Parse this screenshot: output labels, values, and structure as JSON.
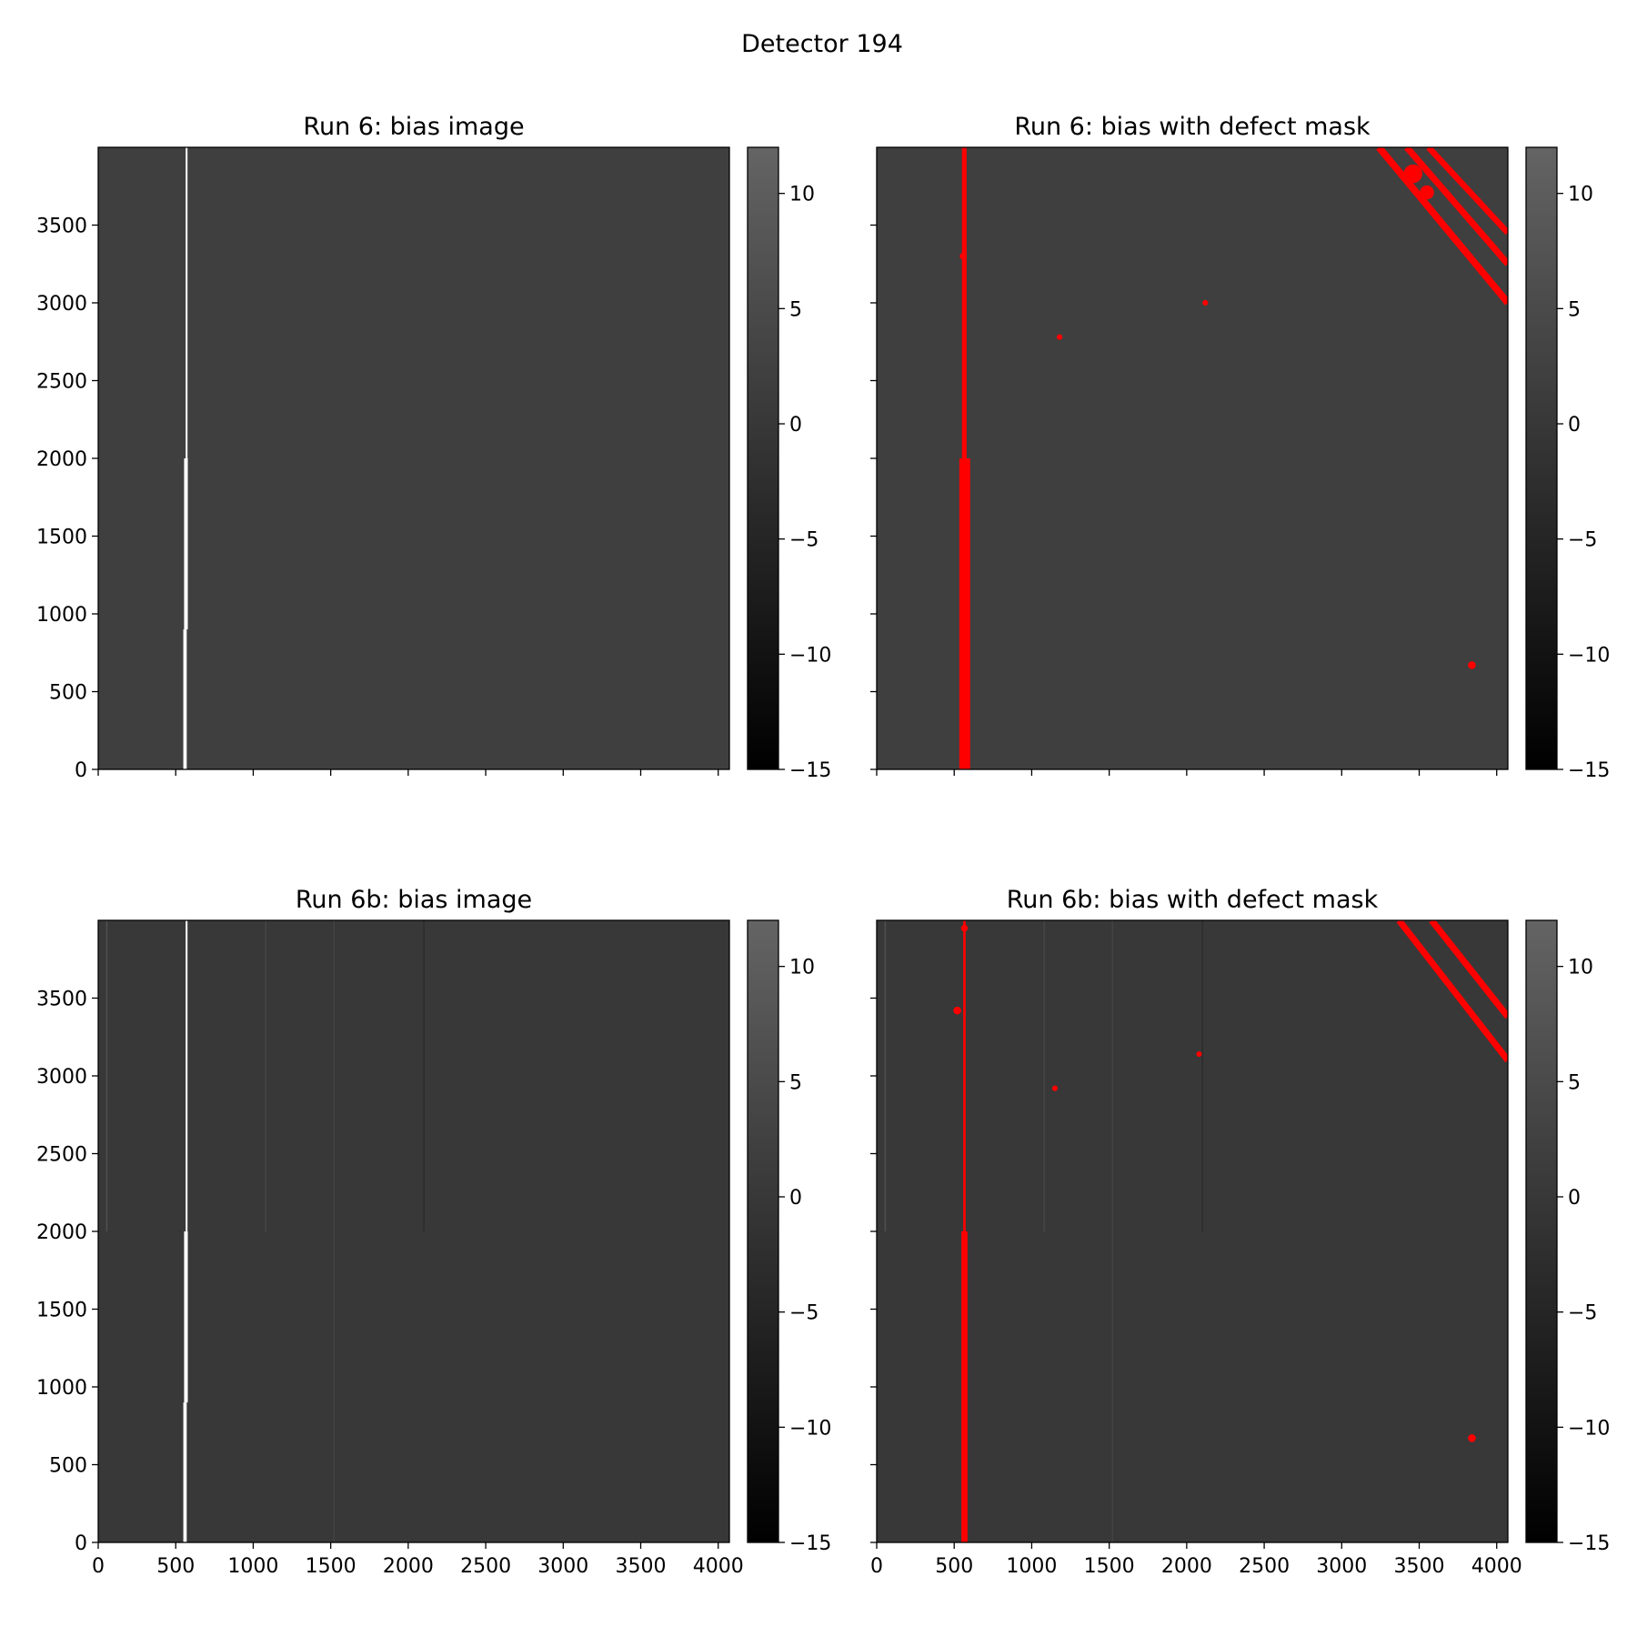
{
  "figure": {
    "suptitle": "Detector 194"
  },
  "chart_data": [
    {
      "type": "heatmap",
      "title": "Run 6: bias image",
      "xlim": [
        0,
        4072
      ],
      "ylim": [
        0,
        4000
      ],
      "x_ticks": [
        0,
        500,
        1000,
        1500,
        2000,
        2500,
        3000,
        3500,
        4000
      ],
      "x_tick_labels_shown": false,
      "y_ticks": [
        0,
        500,
        1000,
        1500,
        2000,
        2500,
        3000,
        3500
      ],
      "y_tick_labels_shown": true,
      "background_value": 2,
      "colormap": "gray",
      "colorbar": {
        "vmin": -15,
        "vmax": 12,
        "ticks": [
          -15,
          -10,
          -5,
          0,
          5,
          10
        ]
      },
      "bright_columns": [
        {
          "x": 560,
          "y_start": 0,
          "y_end": 900,
          "width": 22,
          "value": 12
        },
        {
          "x": 566,
          "y_start": 900,
          "y_end": 2000,
          "width": 24,
          "value": 12
        },
        {
          "x": 570,
          "y_start": 2000,
          "y_end": 4000,
          "width": 12,
          "value": 12
        }
      ],
      "faint_columns": [],
      "mask_color": "#ff0000",
      "mask": null
    },
    {
      "type": "heatmap",
      "title": "Run 6: bias with defect mask",
      "xlim": [
        0,
        4072
      ],
      "ylim": [
        0,
        4000
      ],
      "x_ticks": [
        0,
        500,
        1000,
        1500,
        2000,
        2500,
        3000,
        3500,
        4000
      ],
      "x_tick_labels_shown": false,
      "y_ticks": [
        0,
        500,
        1000,
        1500,
        2000,
        2500,
        3000,
        3500
      ],
      "y_tick_labels_shown": false,
      "background_value": 2,
      "colormap": "gray",
      "colorbar": {
        "vmin": -15,
        "vmax": 12,
        "ticks": [
          -15,
          -10,
          -5,
          0,
          5,
          10
        ]
      },
      "bright_columns": [],
      "faint_columns": [],
      "mask_color": "#ff0000",
      "mask": {
        "columns": [
          {
            "x": 568,
            "y_start": 0,
            "y_end": 2000,
            "width": 70
          },
          {
            "x": 565,
            "y_start": 2000,
            "y_end": 4000,
            "width": 30
          }
        ],
        "diagonals": [
          {
            "x1": 3240,
            "y1": 4000,
            "x2": 4072,
            "y2": 3000,
            "width": 30
          },
          {
            "x1": 3420,
            "y1": 4000,
            "x2": 4072,
            "y2": 3250,
            "width": 28
          },
          {
            "x1": 3560,
            "y1": 4000,
            "x2": 4072,
            "y2": 3450,
            "width": 26
          }
        ],
        "blobs": [
          {
            "x": 3460,
            "y": 3830,
            "r": 60
          },
          {
            "x": 3550,
            "y": 3710,
            "r": 45
          },
          {
            "x": 2120,
            "y": 3000,
            "r": 18
          },
          {
            "x": 1180,
            "y": 2780,
            "r": 18
          },
          {
            "x": 3840,
            "y": 670,
            "r": 25
          },
          {
            "x": 555,
            "y": 3300,
            "r": 20
          }
        ]
      }
    },
    {
      "type": "heatmap",
      "title": "Run 6b: bias image",
      "xlim": [
        0,
        4072
      ],
      "ylim": [
        0,
        4000
      ],
      "x_ticks": [
        0,
        500,
        1000,
        1500,
        2000,
        2500,
        3000,
        3500,
        4000
      ],
      "x_tick_labels_shown": true,
      "y_ticks": [
        0,
        500,
        1000,
        1500,
        2000,
        2500,
        3000,
        3500
      ],
      "y_tick_labels_shown": true,
      "background_value": 0,
      "colormap": "gray",
      "colorbar": {
        "vmin": -15,
        "vmax": 12,
        "ticks": [
          -15,
          -10,
          -5,
          0,
          5,
          10
        ]
      },
      "bright_columns": [
        {
          "x": 560,
          "y_start": 0,
          "y_end": 900,
          "width": 22,
          "value": 12
        },
        {
          "x": 566,
          "y_start": 900,
          "y_end": 2000,
          "width": 24,
          "value": 12
        },
        {
          "x": 570,
          "y_start": 2000,
          "y_end": 4000,
          "width": 12,
          "value": 12
        }
      ],
      "faint_columns": [
        {
          "x": 55,
          "y_start": 2000,
          "y_end": 4000,
          "width": 10,
          "value": 6
        },
        {
          "x": 1080,
          "y_start": 2000,
          "y_end": 4000,
          "width": 8,
          "value": 4
        },
        {
          "x": 1520,
          "y_start": 0,
          "y_end": 4000,
          "width": 6,
          "value": 3
        },
        {
          "x": 2100,
          "y_start": 2000,
          "y_end": 4000,
          "width": 6,
          "value": -3
        }
      ],
      "mask_color": "#ff0000",
      "mask": null
    },
    {
      "type": "heatmap",
      "title": "Run 6b: bias with defect mask",
      "xlim": [
        0,
        4072
      ],
      "ylim": [
        0,
        4000
      ],
      "x_ticks": [
        0,
        500,
        1000,
        1500,
        2000,
        2500,
        3000,
        3500,
        4000
      ],
      "x_tick_labels_shown": true,
      "y_ticks": [
        0,
        500,
        1000,
        1500,
        2000,
        2500,
        3000,
        3500
      ],
      "y_tick_labels_shown": false,
      "background_value": 0,
      "colormap": "gray",
      "colorbar": {
        "vmin": -15,
        "vmax": 12,
        "ticks": [
          -15,
          -10,
          -5,
          0,
          5,
          10
        ]
      },
      "bright_columns": [],
      "faint_columns": [
        {
          "x": 55,
          "y_start": 2000,
          "y_end": 4000,
          "width": 10,
          "value": 6
        },
        {
          "x": 1080,
          "y_start": 2000,
          "y_end": 4000,
          "width": 8,
          "value": 4
        },
        {
          "x": 1520,
          "y_start": 0,
          "y_end": 4000,
          "width": 6,
          "value": 3
        },
        {
          "x": 2100,
          "y_start": 2000,
          "y_end": 4000,
          "width": 6,
          "value": -3
        }
      ],
      "mask_color": "#ff0000",
      "mask": {
        "columns": [
          {
            "x": 566,
            "y_start": 0,
            "y_end": 2000,
            "width": 40
          },
          {
            "x": 566,
            "y_start": 2000,
            "y_end": 4000,
            "width": 16
          }
        ],
        "diagonals": [
          {
            "x1": 3370,
            "y1": 4000,
            "x2": 4072,
            "y2": 3100,
            "width": 28
          },
          {
            "x1": 3580,
            "y1": 4000,
            "x2": 4072,
            "y2": 3380,
            "width": 28
          }
        ],
        "blobs": [
          {
            "x": 520,
            "y": 3420,
            "r": 25
          },
          {
            "x": 2080,
            "y": 3140,
            "r": 18
          },
          {
            "x": 1150,
            "y": 2920,
            "r": 18
          },
          {
            "x": 3840,
            "y": 670,
            "r": 25
          },
          {
            "x": 566,
            "y": 3950,
            "r": 22
          }
        ]
      }
    }
  ]
}
